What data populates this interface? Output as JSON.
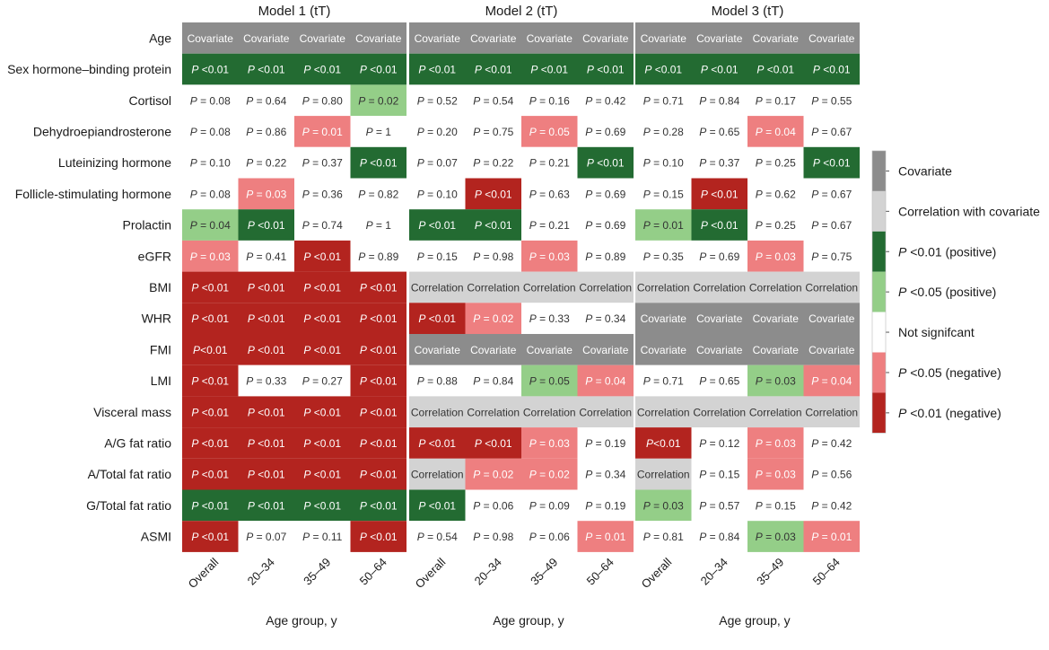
{
  "chart_data": {
    "type": "heatmap",
    "panels": [
      {
        "title": "Model 1 (tT)",
        "xlabel": "Age group, y",
        "columns": [
          "Overall",
          "20–34",
          "35–49",
          "50–64"
        ]
      },
      {
        "title": "Model 2 (tT)",
        "xlabel": "Age group, y",
        "columns": [
          "Overall",
          "20–34",
          "35–49",
          "50–64"
        ]
      },
      {
        "title": "Model 3 (tT)",
        "xlabel": "Age group, y",
        "columns": [
          "Overall",
          "20–34",
          "35–49",
          "50–64"
        ]
      }
    ],
    "rows": [
      "Age",
      "Sex hormone–binding protein",
      "Cortisol",
      "Dehydroepiandrosterone",
      "Luteinizing hormone",
      "Follicle-stimulating hormone",
      "Prolactin",
      "eGFR",
      "BMI",
      "WHR",
      "FMI",
      "LMI",
      "Visceral mass",
      "A/G fat ratio",
      "A/Total fat ratio",
      "G/Total fat ratio",
      "ASMI"
    ],
    "categories": {
      "cov": {
        "label": "Covariate",
        "color": "#8c8c8c"
      },
      "corr": {
        "label": "Correlation with covariate",
        "color": "#d3d3d3"
      },
      "pos01": {
        "label": "P <0.01 (positive)",
        "color": "#236b32"
      },
      "pos05": {
        "label": "P <0.05 (positive)",
        "color": "#94ce88"
      },
      "ns": {
        "label": "Not signifcant",
        "color": "#ffffff"
      },
      "neg05": {
        "label": "P <0.05 (negative)",
        "color": "#ee7f80"
      },
      "neg01": {
        "label": "P <0.01 (negative)",
        "color": "#b3241f"
      }
    },
    "legend_order": [
      "cov",
      "corr",
      "pos01",
      "pos05",
      "ns",
      "neg05",
      "neg01"
    ],
    "cells": [
      [
        [
          "cov",
          "Covariate"
        ],
        [
          "cov",
          "Covariate"
        ],
        [
          "cov",
          "Covariate"
        ],
        [
          "cov",
          "Covariate"
        ],
        [
          "cov",
          "Covariate"
        ],
        [
          "cov",
          "Covariate"
        ],
        [
          "cov",
          "Covariate"
        ],
        [
          "cov",
          "Covariate"
        ],
        [
          "cov",
          "Covariate"
        ],
        [
          "cov",
          "Covariate"
        ],
        [
          "cov",
          "Covariate"
        ],
        [
          "cov",
          "Covariate"
        ]
      ],
      [
        [
          "pos01",
          "P <0.01"
        ],
        [
          "pos01",
          "P <0.01"
        ],
        [
          "pos01",
          "P <0.01"
        ],
        [
          "pos01",
          "P <0.01"
        ],
        [
          "pos01",
          "P <0.01"
        ],
        [
          "pos01",
          "P <0.01"
        ],
        [
          "pos01",
          "P <0.01"
        ],
        [
          "pos01",
          "P <0.01"
        ],
        [
          "pos01",
          "P <0.01"
        ],
        [
          "pos01",
          "P <0.01"
        ],
        [
          "pos01",
          "P <0.01"
        ],
        [
          "pos01",
          "P <0.01"
        ]
      ],
      [
        [
          "ns",
          "P = 0.08"
        ],
        [
          "ns",
          "P = 0.64"
        ],
        [
          "ns",
          "P = 0.80"
        ],
        [
          "pos05",
          "P = 0.02"
        ],
        [
          "ns",
          "P = 0.52"
        ],
        [
          "ns",
          "P = 0.54"
        ],
        [
          "ns",
          "P = 0.16"
        ],
        [
          "ns",
          "P = 0.42"
        ],
        [
          "ns",
          "P = 0.71"
        ],
        [
          "ns",
          "P = 0.84"
        ],
        [
          "ns",
          "P = 0.17"
        ],
        [
          "ns",
          "P = 0.55"
        ]
      ],
      [
        [
          "ns",
          "P = 0.08"
        ],
        [
          "ns",
          "P = 0.86"
        ],
        [
          "neg05",
          "P = 0.01"
        ],
        [
          "ns",
          "P = 1"
        ],
        [
          "ns",
          "P = 0.20"
        ],
        [
          "ns",
          "P = 0.75"
        ],
        [
          "neg05",
          "P = 0.05"
        ],
        [
          "ns",
          "P = 0.69"
        ],
        [
          "ns",
          "P = 0.28"
        ],
        [
          "ns",
          "P = 0.65"
        ],
        [
          "neg05",
          "P = 0.04"
        ],
        [
          "ns",
          "P = 0.67"
        ]
      ],
      [
        [
          "ns",
          "P = 0.10"
        ],
        [
          "ns",
          "P = 0.22"
        ],
        [
          "ns",
          "P = 0.37"
        ],
        [
          "pos01",
          "P <0.01"
        ],
        [
          "ns",
          "P = 0.07"
        ],
        [
          "ns",
          "P = 0.22"
        ],
        [
          "ns",
          "P = 0.21"
        ],
        [
          "pos01",
          "P <0.01"
        ],
        [
          "ns",
          "P = 0.10"
        ],
        [
          "ns",
          "P = 0.37"
        ],
        [
          "ns",
          "P = 0.25"
        ],
        [
          "pos01",
          "P <0.01"
        ]
      ],
      [
        [
          "ns",
          "P = 0.08"
        ],
        [
          "neg05",
          "P = 0.03"
        ],
        [
          "ns",
          "P = 0.36"
        ],
        [
          "ns",
          "P = 0.82"
        ],
        [
          "ns",
          "P = 0.10"
        ],
        [
          "neg01",
          "P <0.01"
        ],
        [
          "ns",
          "P = 0.63"
        ],
        [
          "ns",
          "P = 0.69"
        ],
        [
          "ns",
          "P = 0.15"
        ],
        [
          "neg01",
          "P <0.01"
        ],
        [
          "ns",
          "P = 0.62"
        ],
        [
          "ns",
          "P = 0.67"
        ]
      ],
      [
        [
          "pos05",
          "P = 0.04"
        ],
        [
          "pos01",
          "P <0.01"
        ],
        [
          "ns",
          "P = 0.74"
        ],
        [
          "ns",
          "P = 1"
        ],
        [
          "pos01",
          "P <0.01"
        ],
        [
          "pos01",
          "P <0.01"
        ],
        [
          "ns",
          "P = 0.21"
        ],
        [
          "ns",
          "P = 0.69"
        ],
        [
          "pos05",
          "P = 0.01"
        ],
        [
          "pos01",
          "P <0.01"
        ],
        [
          "ns",
          "P = 0.25"
        ],
        [
          "ns",
          "P = 0.67"
        ]
      ],
      [
        [
          "neg05",
          "P = 0.03"
        ],
        [
          "ns",
          "P = 0.41"
        ],
        [
          "neg01",
          "P <0.01"
        ],
        [
          "ns",
          "P = 0.89"
        ],
        [
          "ns",
          "P = 0.15"
        ],
        [
          "ns",
          "P = 0.98"
        ],
        [
          "neg05",
          "P = 0.03"
        ],
        [
          "ns",
          "P = 0.89"
        ],
        [
          "ns",
          "P = 0.35"
        ],
        [
          "ns",
          "P = 0.69"
        ],
        [
          "neg05",
          "P = 0.03"
        ],
        [
          "ns",
          "P = 0.75"
        ]
      ],
      [
        [
          "neg01",
          "P <0.01"
        ],
        [
          "neg01",
          "P <0.01"
        ],
        [
          "neg01",
          "P <0.01"
        ],
        [
          "neg01",
          "P <0.01"
        ],
        [
          "corr",
          "Correlation"
        ],
        [
          "corr",
          "Correlation"
        ],
        [
          "corr",
          "Correlation"
        ],
        [
          "corr",
          "Correlation"
        ],
        [
          "corr",
          "Correlation"
        ],
        [
          "corr",
          "Correlation"
        ],
        [
          "corr",
          "Correlation"
        ],
        [
          "corr",
          "Correlation"
        ]
      ],
      [
        [
          "neg01",
          "P <0.01"
        ],
        [
          "neg01",
          "P <0.01"
        ],
        [
          "neg01",
          "P <0.01"
        ],
        [
          "neg01",
          "P <0.01"
        ],
        [
          "neg01",
          "P <0.01"
        ],
        [
          "neg05",
          "P = 0.02"
        ],
        [
          "ns",
          "P = 0.33"
        ],
        [
          "ns",
          "P = 0.34"
        ],
        [
          "cov",
          "Covariate"
        ],
        [
          "cov",
          "Covariate"
        ],
        [
          "cov",
          "Covariate"
        ],
        [
          "cov",
          "Covariate"
        ]
      ],
      [
        [
          "neg01",
          "P<0.01"
        ],
        [
          "neg01",
          "P <0.01"
        ],
        [
          "neg01",
          "P <0.01"
        ],
        [
          "neg01",
          "P <0.01"
        ],
        [
          "cov",
          "Covariate"
        ],
        [
          "cov",
          "Covariate"
        ],
        [
          "cov",
          "Covariate"
        ],
        [
          "cov",
          "Covariate"
        ],
        [
          "cov",
          "Covariate"
        ],
        [
          "cov",
          "Covariate"
        ],
        [
          "cov",
          "Covariate"
        ],
        [
          "cov",
          "Covariate"
        ]
      ],
      [
        [
          "neg01",
          "P <0.01"
        ],
        [
          "ns",
          "P = 0.33"
        ],
        [
          "ns",
          "P = 0.27"
        ],
        [
          "neg01",
          "P <0.01"
        ],
        [
          "ns",
          "P = 0.88"
        ],
        [
          "ns",
          "P = 0.84"
        ],
        [
          "pos05",
          "P = 0.05"
        ],
        [
          "neg05",
          "P = 0.04"
        ],
        [
          "ns",
          "P = 0.71"
        ],
        [
          "ns",
          "P = 0.65"
        ],
        [
          "pos05",
          "P = 0.03"
        ],
        [
          "neg05",
          "P = 0.04"
        ]
      ],
      [
        [
          "neg01",
          "P <0.01"
        ],
        [
          "neg01",
          "P <0.01"
        ],
        [
          "neg01",
          "P <0.01"
        ],
        [
          "neg01",
          "P <0.01"
        ],
        [
          "corr",
          "Correlation"
        ],
        [
          "corr",
          "Correlation"
        ],
        [
          "corr",
          "Correlation"
        ],
        [
          "corr",
          "Correlation"
        ],
        [
          "corr",
          "Correlation"
        ],
        [
          "corr",
          "Correlation"
        ],
        [
          "corr",
          "Correlation"
        ],
        [
          "corr",
          "Correlation"
        ]
      ],
      [
        [
          "neg01",
          "P <0.01"
        ],
        [
          "neg01",
          "P <0.01"
        ],
        [
          "neg01",
          "P <0.01"
        ],
        [
          "neg01",
          "P <0.01"
        ],
        [
          "neg01",
          "P <0.01"
        ],
        [
          "neg01",
          "P <0.01"
        ],
        [
          "neg05",
          "P = 0.03"
        ],
        [
          "ns",
          "P = 0.19"
        ],
        [
          "neg01",
          "P<0.01"
        ],
        [
          "ns",
          "P = 0.12"
        ],
        [
          "neg05",
          "P = 0.03"
        ],
        [
          "ns",
          "P = 0.42"
        ]
      ],
      [
        [
          "neg01",
          "P <0.01"
        ],
        [
          "neg01",
          "P <0.01"
        ],
        [
          "neg01",
          "P <0.01"
        ],
        [
          "neg01",
          "P <0.01"
        ],
        [
          "corr",
          "Correlation"
        ],
        [
          "neg05",
          "P = 0.02"
        ],
        [
          "neg05",
          "P = 0.02"
        ],
        [
          "ns",
          "P = 0.34"
        ],
        [
          "corr",
          "Correlation"
        ],
        [
          "ns",
          "P = 0.15"
        ],
        [
          "neg05",
          "P = 0.03"
        ],
        [
          "ns",
          "P = 0.56"
        ]
      ],
      [
        [
          "pos01",
          "P <0.01"
        ],
        [
          "pos01",
          "P <0.01"
        ],
        [
          "pos01",
          "P <0.01"
        ],
        [
          "pos01",
          "P <0.01"
        ],
        [
          "pos01",
          "P <0.01"
        ],
        [
          "ns",
          "P = 0.06"
        ],
        [
          "ns",
          "P = 0.09"
        ],
        [
          "ns",
          "P = 0.19"
        ],
        [
          "pos05",
          "P = 0.03"
        ],
        [
          "ns",
          "P = 0.57"
        ],
        [
          "ns",
          "P = 0.15"
        ],
        [
          "ns",
          "P = 0.42"
        ]
      ],
      [
        [
          "neg01",
          "P <0.01"
        ],
        [
          "ns",
          "P = 0.07"
        ],
        [
          "ns",
          "P = 0.11"
        ],
        [
          "neg01",
          "P <0.01"
        ],
        [
          "ns",
          "P = 0.54"
        ],
        [
          "ns",
          "P = 0.98"
        ],
        [
          "ns",
          "P = 0.06"
        ],
        [
          "neg05",
          "P = 0.01"
        ],
        [
          "ns",
          "P = 0.81"
        ],
        [
          "ns",
          "P = 0.84"
        ],
        [
          "pos05",
          "P = 0.03"
        ],
        [
          "neg05",
          "P = 0.01"
        ]
      ]
    ]
  }
}
